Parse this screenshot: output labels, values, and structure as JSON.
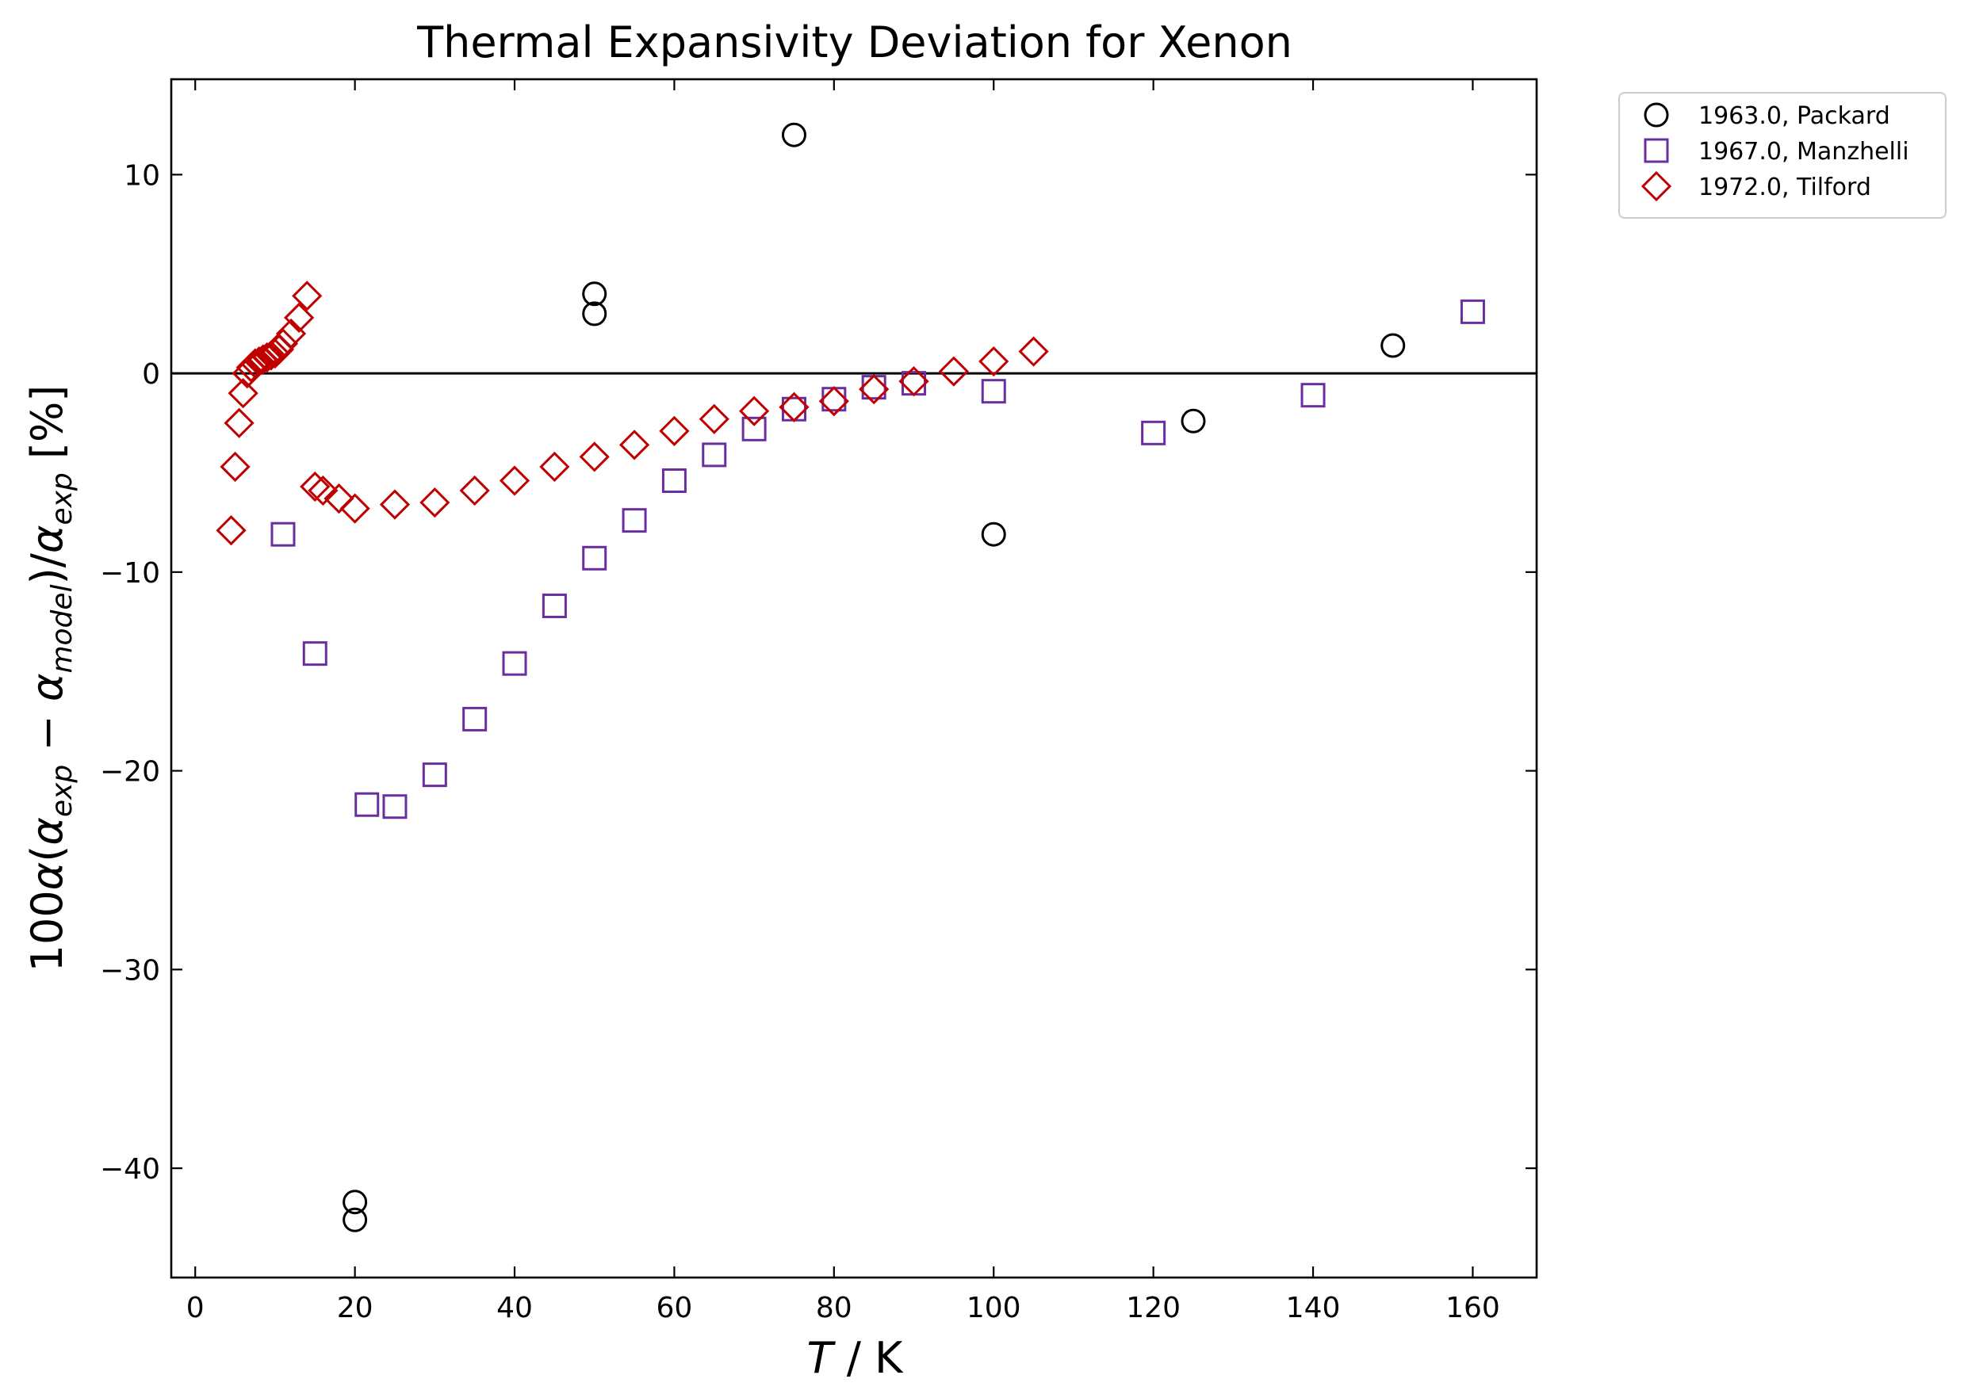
{
  "chart_data": {
    "type": "scatter",
    "title": "Thermal Expansivity Deviation for Xenon",
    "xlabel": {
      "italic": "T",
      "rest": " / K"
    },
    "ylabel": {
      "prefix": "100",
      "alpha": "α",
      "open": "(",
      "exp": "exp",
      "minus": " − ",
      "model": "model",
      "close": ")/",
      "suffix": " [%]"
    },
    "xlim": [
      -3,
      168
    ],
    "ylim": [
      -45.5,
      14.8
    ],
    "xticks": [
      {
        "value": 0,
        "label": "0"
      },
      {
        "value": 20,
        "label": "20"
      },
      {
        "value": 40,
        "label": "40"
      },
      {
        "value": 60,
        "label": "60"
      },
      {
        "value": 80,
        "label": "80"
      },
      {
        "value": 100,
        "label": "100"
      },
      {
        "value": 120,
        "label": "120"
      },
      {
        "value": 140,
        "label": "140"
      },
      {
        "value": 160,
        "label": "160"
      }
    ],
    "yticks": [
      {
        "value": -40,
        "label": "−40"
      },
      {
        "value": -30,
        "label": "−30"
      },
      {
        "value": -20,
        "label": "−20"
      },
      {
        "value": -10,
        "label": "−10"
      },
      {
        "value": 0,
        "label": "0"
      },
      {
        "value": 10,
        "label": "10"
      }
    ],
    "reference_line": {
      "y": 0,
      "color": "#000000"
    },
    "grid": false,
    "legend_position": "outside-top-right",
    "series": [
      {
        "name": "1963.0, Packard",
        "marker": "circle",
        "color": "#000000",
        "points": [
          [
            20,
            -41.7
          ],
          [
            20,
            -42.6
          ],
          [
            50,
            4.0
          ],
          [
            50,
            3.0
          ],
          [
            75,
            12.0
          ],
          [
            100,
            -8.1
          ],
          [
            125,
            -2.4
          ],
          [
            150,
            1.4
          ]
        ]
      },
      {
        "name": "1967.0, Manzhelli",
        "marker": "square",
        "color": "#6a2ea0",
        "points": [
          [
            11,
            -8.1
          ],
          [
            15,
            -14.1
          ],
          [
            21.5,
            -21.7
          ],
          [
            25,
            -21.8
          ],
          [
            30,
            -20.2
          ],
          [
            35,
            -17.4
          ],
          [
            40,
            -14.6
          ],
          [
            45,
            -11.7
          ],
          [
            50,
            -9.3
          ],
          [
            55,
            -7.4
          ],
          [
            60,
            -5.4
          ],
          [
            65,
            -4.1
          ],
          [
            70,
            -2.8
          ],
          [
            75,
            -1.8
          ],
          [
            80,
            -1.3
          ],
          [
            85,
            -0.7
          ],
          [
            90,
            -0.5
          ],
          [
            100,
            -0.9
          ],
          [
            120,
            -3.0
          ],
          [
            140,
            -1.1
          ],
          [
            160,
            3.1
          ]
        ]
      },
      {
        "name": "1972.0, Tilford",
        "marker": "diamond",
        "color": "#c00000",
        "points": [
          [
            4.5,
            -7.9
          ],
          [
            5,
            -4.7
          ],
          [
            5.5,
            -2.5
          ],
          [
            6,
            -1.0
          ],
          [
            6.5,
            0.0
          ],
          [
            7,
            0.3
          ],
          [
            7.5,
            0.5
          ],
          [
            8,
            0.6
          ],
          [
            8.5,
            0.7
          ],
          [
            9,
            0.8
          ],
          [
            9.5,
            0.9
          ],
          [
            10,
            1.0
          ],
          [
            10.5,
            1.2
          ],
          [
            11,
            1.5
          ],
          [
            12,
            2.0
          ],
          [
            13,
            2.8
          ],
          [
            14,
            3.9
          ],
          [
            15,
            -5.7
          ],
          [
            16,
            -5.9
          ],
          [
            18,
            -6.3
          ],
          [
            20,
            -6.8
          ],
          [
            25,
            -6.6
          ],
          [
            30,
            -6.5
          ],
          [
            35,
            -5.9
          ],
          [
            40,
            -5.4
          ],
          [
            45,
            -4.7
          ],
          [
            50,
            -4.2
          ],
          [
            55,
            -3.6
          ],
          [
            60,
            -2.9
          ],
          [
            65,
            -2.3
          ],
          [
            70,
            -1.9
          ],
          [
            75,
            -1.7
          ],
          [
            80,
            -1.4
          ],
          [
            85,
            -0.8
          ],
          [
            90,
            -0.4
          ],
          [
            95,
            0.1
          ],
          [
            100,
            0.6
          ],
          [
            105,
            1.1
          ]
        ]
      }
    ]
  }
}
